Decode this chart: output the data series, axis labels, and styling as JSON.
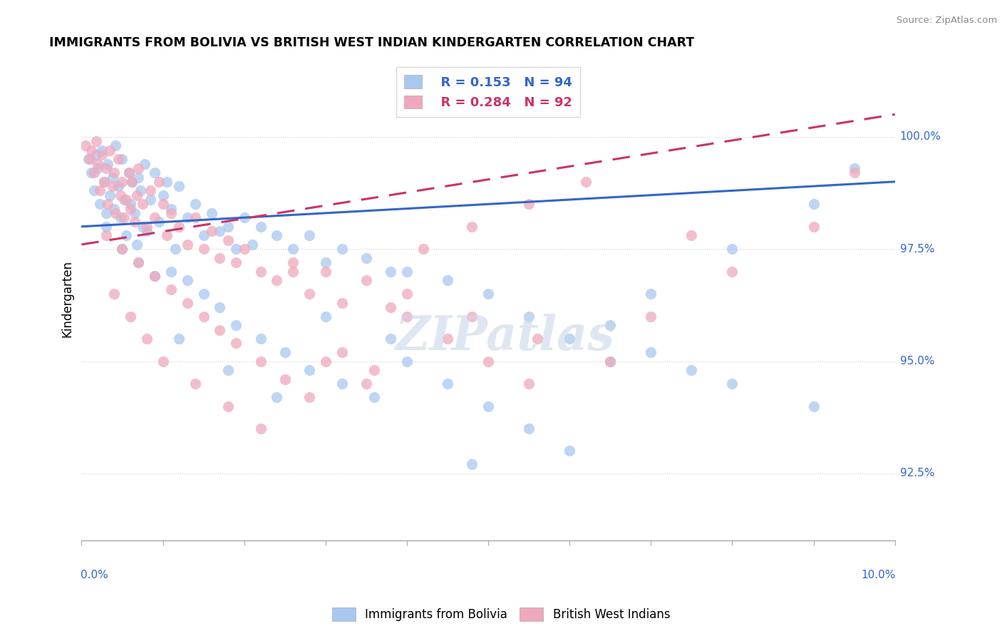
{
  "title": "IMMIGRANTS FROM BOLIVIA VS BRITISH WEST INDIAN KINDERGARTEN CORRELATION CHART",
  "source": "Source: ZipAtlas.com",
  "ylabel": "Kindergarten",
  "xlim": [
    0.0,
    10.0
  ],
  "ylim": [
    91.0,
    101.8
  ],
  "yticks": [
    92.5,
    95.0,
    97.5,
    100.0
  ],
  "ytick_labels": [
    "92.5%",
    "95.0%",
    "97.5%",
    "100.0%"
  ],
  "legend_blue_label": "Immigrants from Bolivia",
  "legend_pink_label": "British West Indians",
  "R_blue": 0.153,
  "N_blue": 94,
  "R_pink": 0.284,
  "N_pink": 92,
  "blue_color": "#a8c8f0",
  "pink_color": "#f0a8bc",
  "blue_line_color": "#3366cc",
  "pink_line_color": "#cc3366",
  "blue_trend_x": [
    0.0,
    10.0
  ],
  "blue_trend_y": [
    98.0,
    99.0
  ],
  "pink_trend_x": [
    0.0,
    10.0
  ],
  "pink_trend_y": [
    97.6,
    100.5
  ],
  "watermark_text": "ZIPatlas",
  "blue_points_x": [
    0.08,
    0.12,
    0.15,
    0.18,
    0.2,
    0.22,
    0.25,
    0.28,
    0.3,
    0.32,
    0.35,
    0.38,
    0.4,
    0.42,
    0.45,
    0.48,
    0.5,
    0.52,
    0.55,
    0.58,
    0.6,
    0.62,
    0.65,
    0.68,
    0.7,
    0.72,
    0.75,
    0.78,
    0.8,
    0.85,
    0.9,
    0.95,
    1.0,
    1.05,
    1.1,
    1.15,
    1.2,
    1.3,
    1.4,
    1.5,
    1.6,
    1.7,
    1.8,
    1.9,
    2.0,
    2.1,
    2.2,
    2.4,
    2.6,
    2.8,
    3.0,
    3.2,
    3.5,
    3.8,
    4.0,
    4.5,
    5.0,
    5.5,
    6.0,
    6.5,
    7.0,
    7.5,
    8.0,
    9.0,
    9.5,
    0.3,
    0.5,
    0.7,
    0.9,
    1.1,
    1.3,
    1.5,
    1.7,
    1.9,
    2.2,
    2.5,
    2.8,
    3.2,
    3.6,
    4.0,
    4.5,
    5.0,
    5.5,
    6.0,
    7.0,
    8.0,
    9.0,
    1.2,
    1.8,
    2.4,
    3.0,
    3.8,
    4.8,
    6.5
  ],
  "blue_points_y": [
    99.5,
    99.2,
    98.8,
    99.6,
    99.3,
    98.5,
    99.7,
    99.0,
    98.3,
    99.4,
    98.7,
    99.1,
    98.4,
    99.8,
    98.9,
    98.2,
    99.5,
    98.6,
    97.8,
    99.2,
    98.5,
    99.0,
    98.3,
    97.6,
    99.1,
    98.8,
    98.0,
    99.4,
    97.9,
    98.6,
    99.2,
    98.1,
    98.7,
    99.0,
    98.4,
    97.5,
    98.9,
    98.2,
    98.5,
    97.8,
    98.3,
    97.9,
    98.0,
    97.5,
    98.2,
    97.6,
    98.0,
    97.8,
    97.5,
    97.8,
    97.2,
    97.5,
    97.3,
    97.0,
    97.0,
    96.8,
    96.5,
    96.0,
    95.5,
    95.0,
    95.2,
    94.8,
    94.5,
    94.0,
    99.3,
    98.0,
    97.5,
    97.2,
    96.9,
    97.0,
    96.8,
    96.5,
    96.2,
    95.8,
    95.5,
    95.2,
    94.8,
    94.5,
    94.2,
    95.0,
    94.5,
    94.0,
    93.5,
    93.0,
    96.5,
    97.5,
    98.5,
    95.5,
    94.8,
    94.2,
    96.0,
    95.5,
    92.7,
    95.8
  ],
  "pink_points_x": [
    0.05,
    0.1,
    0.12,
    0.15,
    0.18,
    0.2,
    0.22,
    0.25,
    0.28,
    0.3,
    0.32,
    0.35,
    0.38,
    0.4,
    0.42,
    0.45,
    0.48,
    0.5,
    0.52,
    0.55,
    0.58,
    0.6,
    0.62,
    0.65,
    0.68,
    0.7,
    0.75,
    0.8,
    0.85,
    0.9,
    0.95,
    1.0,
    1.05,
    1.1,
    1.2,
    1.3,
    1.4,
    1.5,
    1.6,
    1.7,
    1.8,
    1.9,
    2.0,
    2.2,
    2.4,
    2.6,
    2.8,
    3.0,
    3.2,
    3.5,
    3.8,
    4.0,
    4.5,
    5.0,
    5.5,
    0.3,
    0.5,
    0.7,
    0.9,
    1.1,
    1.3,
    1.5,
    1.7,
    1.9,
    2.2,
    2.5,
    2.8,
    3.2,
    3.6,
    4.2,
    4.8,
    5.5,
    6.2,
    7.0,
    8.0,
    9.0,
    0.4,
    0.6,
    0.8,
    1.0,
    1.4,
    1.8,
    2.2,
    2.6,
    3.0,
    3.5,
    4.0,
    4.8,
    5.6,
    6.5,
    7.5,
    9.5
  ],
  "pink_points_y": [
    99.8,
    99.5,
    99.7,
    99.2,
    99.9,
    99.4,
    98.8,
    99.6,
    99.0,
    99.3,
    98.5,
    99.7,
    98.9,
    99.2,
    98.3,
    99.5,
    98.7,
    99.0,
    98.2,
    98.6,
    99.2,
    98.4,
    99.0,
    98.1,
    98.7,
    99.3,
    98.5,
    98.0,
    98.8,
    98.2,
    99.0,
    98.5,
    97.8,
    98.3,
    98.0,
    97.6,
    98.2,
    97.5,
    97.9,
    97.3,
    97.7,
    97.2,
    97.5,
    97.0,
    96.8,
    97.2,
    96.5,
    97.0,
    96.3,
    96.8,
    96.2,
    96.0,
    95.5,
    95.0,
    94.5,
    97.8,
    97.5,
    97.2,
    96.9,
    96.6,
    96.3,
    96.0,
    95.7,
    95.4,
    95.0,
    94.6,
    94.2,
    95.2,
    94.8,
    97.5,
    98.0,
    98.5,
    99.0,
    96.0,
    97.0,
    98.0,
    96.5,
    96.0,
    95.5,
    95.0,
    94.5,
    94.0,
    93.5,
    97.0,
    95.0,
    94.5,
    96.5,
    96.0,
    95.5,
    95.0,
    97.8,
    99.2
  ]
}
